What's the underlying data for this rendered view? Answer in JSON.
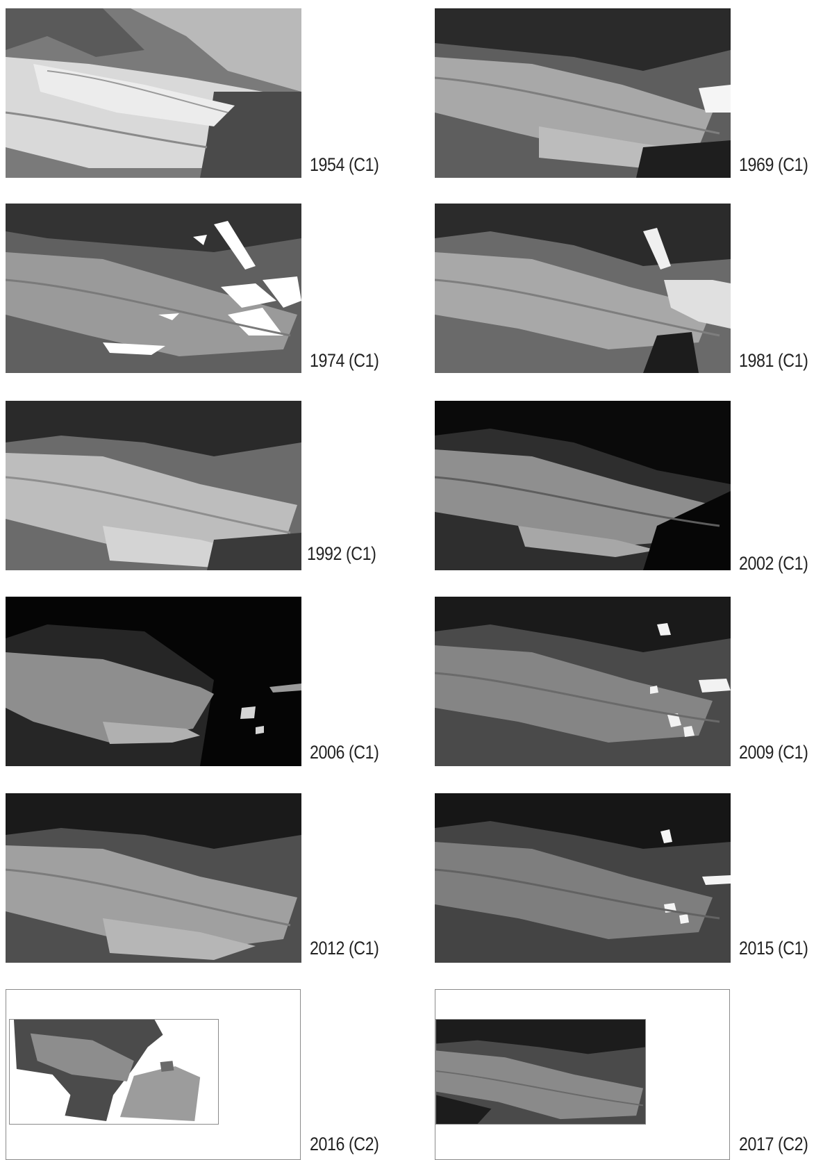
{
  "panels": [
    {
      "caption": "1954 (C1)",
      "tone": {
        "bg": "#7d7d7d",
        "ice": "#d8d8d8",
        "rock": "#3c3c3c",
        "snow": "#f2f2f2"
      }
    },
    {
      "caption": "1969 (C1)",
      "tone": {
        "bg": "#5e5e5e",
        "ice": "#a9a9a9",
        "rock": "#1e1e1e",
        "snow": "#f5f5f5"
      }
    },
    {
      "caption": "1974 (C1)",
      "tone": {
        "bg": "#606060",
        "ice": "#9a9a9a",
        "rock": "#2a2a2a",
        "snow": "#ffffff"
      }
    },
    {
      "caption": "1981 (C1)",
      "tone": {
        "bg": "#6a6a6a",
        "ice": "#a8a8a8",
        "rock": "#1c1c1c",
        "snow": "#e8e8e8"
      }
    },
    {
      "caption": "1992 (C1)",
      "tone": {
        "bg": "#6b6b6b",
        "ice": "#bdbdbd",
        "rock": "#202020",
        "snow": "#e6e6e6"
      }
    },
    {
      "caption": "2002 (C1)",
      "tone": {
        "bg": "#2e2e2e",
        "ice": "#8f8f8f",
        "rock": "#080808",
        "snow": "#cfcfcf"
      }
    },
    {
      "caption": "2006 (C1)",
      "tone": {
        "bg": "#262626",
        "ice": "#9c9c9c",
        "rock": "#020202",
        "snow": "#d5d5d5"
      }
    },
    {
      "caption": "2009 (C1)",
      "tone": {
        "bg": "#4a4a4a",
        "ice": "#858585",
        "rock": "#1a1a1a",
        "snow": "#f2f2f2"
      }
    },
    {
      "caption": "2012 (C1)",
      "tone": {
        "bg": "#4f4f4f",
        "ice": "#a0a0a0",
        "rock": "#1a1a1a",
        "snow": "#e0e0e0"
      }
    },
    {
      "caption": "2015 (C1)",
      "tone": {
        "bg": "#444444",
        "ice": "#7e7e7e",
        "rock": "#161616",
        "snow": "#f5f5f5"
      }
    },
    {
      "caption": "2016 (C2)",
      "tone": {
        "bg": "#4b4b4b",
        "ice": "#8d8d8d",
        "rock": "#222222",
        "snow": "#bdbdbd"
      }
    },
    {
      "caption": "2017 (C2)",
      "tone": {
        "bg": "#4a4a4a",
        "ice": "#8a8a8a",
        "rock": "#1c1c1c",
        "snow": "#cccccc"
      }
    }
  ]
}
